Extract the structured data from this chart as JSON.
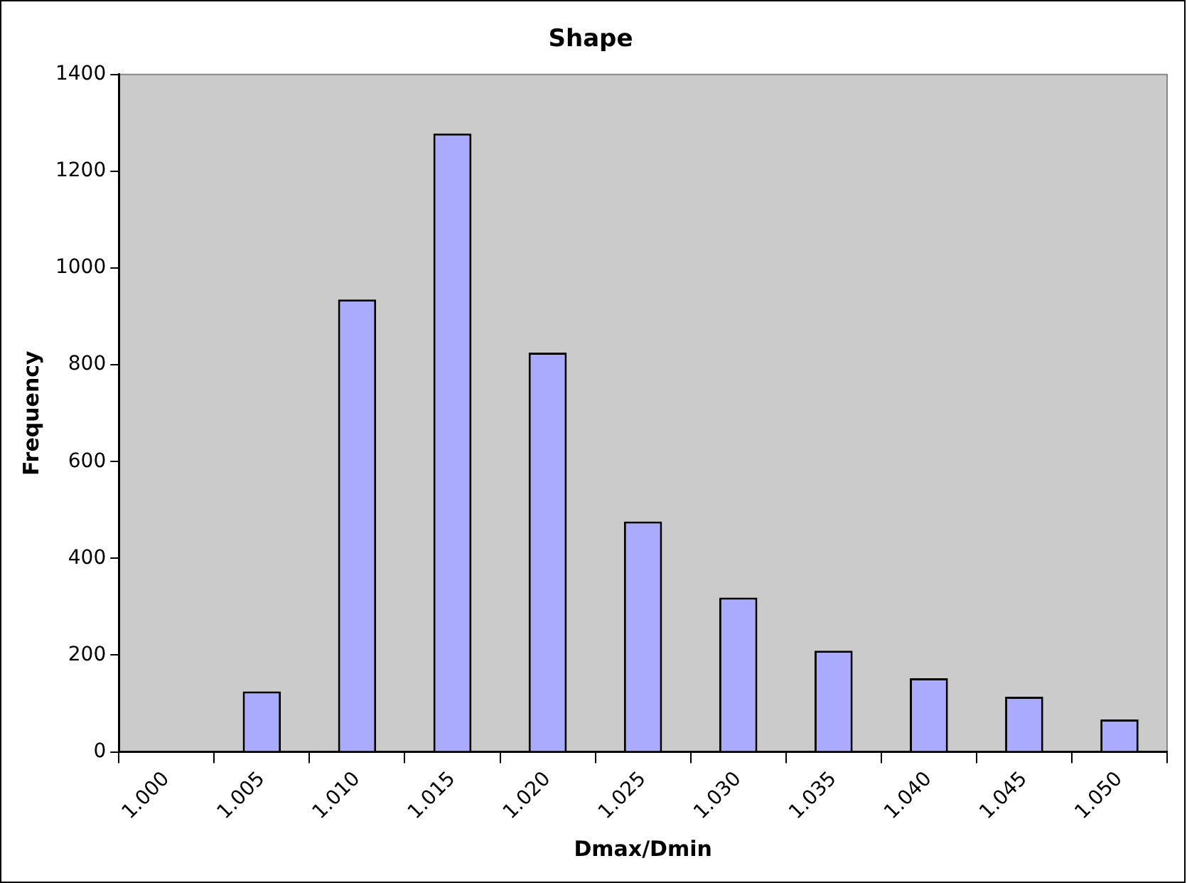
{
  "chart_data": {
    "type": "bar",
    "title": "Shape",
    "xlabel": "Dmax/Dmin",
    "ylabel": "Frequency",
    "categories": [
      "1.000",
      "1.005",
      "1.010",
      "1.015",
      "1.020",
      "1.025",
      "1.030",
      "1.035",
      "1.040",
      "1.045",
      "1.050"
    ],
    "values": [
      2,
      125,
      935,
      1278,
      825,
      476,
      319,
      209,
      152,
      114,
      67
    ],
    "color": "#aaaaff",
    "ylim": [
      0,
      1400
    ],
    "yticks": [
      0,
      200,
      400,
      600,
      800,
      1000,
      1200,
      1400
    ],
    "grid": false,
    "legend": false
  }
}
